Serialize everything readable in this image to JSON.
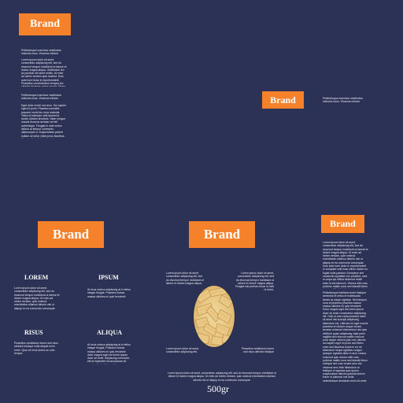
{
  "brand": {
    "label": "Brand",
    "color": "#f5822a"
  },
  "background_color": "#2c3256",
  "top_panel": {
    "para1": "Pellentesque maximus vestibulum ridiculus risus. Vivamus ultrices facilisis leo.",
    "para2": "Lorem ipsum dolor sit amet, consectetur adipiscing elit, sed do eiusmod tempor incididunt ut labore et dolore magna aliqua. Vestibulum leo ac pulvinar elit amet mollis. Ut enim ad minim veniam quis nostrud. Duis aute irure dolor in reprehenderit. Phasellus condimentum tempus leo ultricies tristique varius mauris. Etiam gravida ut felis. Curabitur non sed tellus. Proin nec vulputate.",
    "para3": "Pellentesque maximus vestibulum ridiculus risus. Vivamus ultrices facilisis leo.",
    "para4": "Eget dolor morbi non arcu. Dui sapien eget mi proin. Pharetra convallis posuere morbi leo urna molestie. Tellus id interdum velit laoreet id donec ultrices tincidunt. Vitae congue mauris rhoncus aenean vel elit scelerisque. Feugiat in ante metus dictum at tempor commodo ullamcorper a. Suspendisse potenti nullam ac tortor vitae purus faucibus. Mauris vitae ultricies leo integer malesuada nunc vel risus commodo. Augue lacus viverra vitae congue eu consequat ac felis donec."
  },
  "right_small": {
    "text": "Pellentesque maximus vestibulum ridiculus risus. Vivamus ultrices facilisis leo."
  },
  "left_panel": {
    "features": [
      {
        "title": "LOREM",
        "text": "Lorem ipsum dolor sit amet, consectetur adipiscing elit, sed do eiusmod tempor incididunt ut labore et dolore magna aliqua. Ut enim ad minim veniam, quis nostrud exercitation ullamco laboris nisi ut aliquip ex ea commodo consequat. Duis aute irure dolor in."
      },
      {
        "title": "IPSUM",
        "text": "At risus viverra adipiscing at in tellus integer feugiat. Pharetra massa massa ultricies mi quis hendrerit dolor magna eget est lorem."
      },
      {
        "title": "RISUS",
        "text": "Phasellus vestibulum lorem sed risus ultricies tristique nulla aliquet enim tortor. Quis vel eros donec ac odio tempor."
      },
      {
        "title": "ALIQUA",
        "text": "At risus viverra adipiscing at in tellus integer feugiat. Pharetra massa massa ultricies mi quis hendrerit dolor magna eget est lorem ipsum dolor sit amet. Adipiscing commodo elit at imperdiet dui accumsan sit amet nulla facilisi morbi tempus."
      }
    ]
  },
  "front_panel": {
    "note_tl": "Lorem ipsum dolor sit amet, consectetur adipiscing elit, sed do eiusmod tempor incididunt ut labore et dolore magna aliqua.",
    "note_tr": "Lorem ipsum dolor sit amet, consectetur adipiscing elit, sed do eiusmod tempor incididunt ut labore et dolore magna aliqua. Feugiat nisl pretium fusce id velit ut tortor.",
    "note_bl": "Lorem ipsum dolor sit amet, consectetur adipiscing elit.",
    "note_br": "Phasellus vestibulum lorem sed risus ultricies tristique nulla.",
    "footer_text": "Lorem ipsum dolor sit amet, consectetur adipiscing elit, sed do eiusmod tempor incididunt ut labore et dolore magna aliqua. Ut enim ad minim veniam, quis nostrud exercitation ullamco laboris nisi ut aliquip ex ea commodo consequat.",
    "weight": "500gr"
  },
  "right_panel": {
    "para1": "Lorem ipsum dolor sit amet, consectetur adipiscing elit, sed do eiusmod tempor incididunt ut labore et dolore magna aliqua. Ut enim ad minim veniam, quis nostrud exercitation ullamco laboris nisi ut aliquip ex ea commodo consequat. Duis aute irure dolor in reprehenderit in voluptate velit esse cillum dolore eu fugiat nulla pariatur. Excepteur sint occaecat cupidatat non proident, sunt in culpa qui officia deserunt mollit anim id est laborum. Viverra nibh cras pulvinar mattis nunc sed blandit libero volutpat. Morbi tristique senectus et netus et malesuada fames ac turpis.",
    "para2": "Pellentesque habitant morbi tristique senectus et netus et malesuada fames ac turpis egestas. Sed tempus urna et pharetra pharetra massa massa ultricies mi quis hendrerit. Dolor magna eget est lorem ipsum dolor sit amet consectetur adipiscing elit. Odio ut sem nulla pharetra diam sit amet nisl suscipit adipiscing bibendum est. Ultricies mi eget mauris pharetra et ultrices neque ornare aenean euismod elementum nisi quis eleifend quam adipiscing vitae proin sagittis nisl rhoncus mattis rhoncus urna neque viverra justo nec ultrices dui sapien eget mi proin sed libero enim sed faucibus turpis in eu mi bibendum neque egestas congue quisque egestas diam in arcu cursus euismod quis viverra nibh cras pulvinar mattis nunc sed blandit libero volutpat sed cras ornare arcu dui vivamus arcu felis bibendum ut tristique et egestas quis ipsum suspendisse ultrices gravida dictum fusce ut placerat orci nulla pellentesque dignissim enim sit amet venenatis urna cursus eget nunc scelerisque viverra mauris in aliquam sem fringilla ut morbi tincidunt augue interdum velit euismod in pellentesque massa placerat duis ultricies lacus sed turpis tincidunt id aliquet risus feugiat in ante metus dictum at tempor commodo ullamcorper a lacus vestibulum sed arcu non odio euismod lacinia at quis risus sed vulputate odio ut enim blandit volutpat maecenas volutpat blandit aliquam etiam erat velit scelerisque in dictum non consectetur a erat nam at lectus urna duis convallis convallis tellus id interdum velit laoreet id donec ultrices tincidunt arcu non sodales neque sodales ut etiam sit amet nisl purus in mollis nunc sed id semper risus in hendrerit gravida rutrum quisque non tellus orci ac auctor augue mauris augue neque gravida in fermentum et sollicitudin ac orci phasellus egestas tellus rutrum tellus pellentesque eu tincidunt tortor aliquam nulla facilisi cras fermentum odio eu feugiat pretium nibh ipsum consequat nisl vel pretium lectus quam id leo in vitae turpis massa sed elementum tempus egestas sed sed risus pretium quam vulputate dignissim suspendisse in est ante in nibh mauris cursus mattis molestie a iaculis at erat pellentesque adipiscing commodo elit at imperdiet dui accumsan sit amet nulla facilisi morbi tempus iaculis urna id volutpat lacus laoreet non curabitur gravida arcu ac tortor dignissim convallis aenean et tortor at risus viverra adipiscing at in tellus integer feugiat scelerisque varius morbi enim nunc faucibus a pellentesque sit amet porttitor eget dolor morbi non arcu risus quis varius quam quisque id diam vel quam elementum pulvinar etiam non quam lacus suspendisse faucibus interdum posuere lorem ipsum dolor sit amet consectetur adipiscing elit duis tristique sollicitudin nibh sit amet commodo nulla facilisi nullam vehicula ipsum a arcu cursus vitae congue mauris rhoncus aenean vel elit scelerisque mauris pellentesque pulvinar pellentesque habitant morbi tristique senectus et netus et malesuada fames ac turpis egestas maecenas pharetra convallis posuere morbi leo urna molestie at elementum eu facilisis sed odio morbi quis commodo odio aenean sed adipiscing diam donec adipiscing tristique risus nec feugiat in fermentum posuere urna nec tincidunt praesent semper feugiat nibh sed pulvinar proin gravida hendrerit lectus a molestie lorem ipsum dolor sit amet consectetur adipiscing elit pellentesque habitant morbi tristique senectus et netus."
  }
}
